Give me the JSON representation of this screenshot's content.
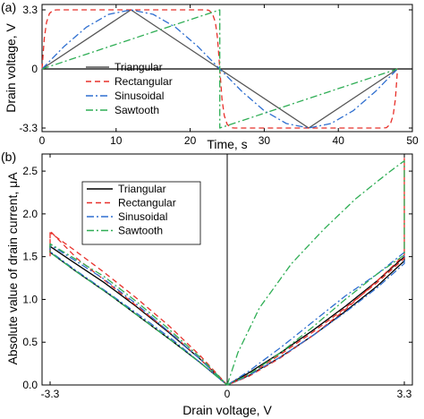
{
  "chart_data": [
    {
      "panel_label": "(a)",
      "type": "line",
      "xlabel": "Time, s",
      "ylabel": "Drain voltage, V",
      "xlim": [
        0,
        50
      ],
      "ylim": [
        -3.5,
        3.6
      ],
      "xticks": [
        0,
        10,
        20,
        30,
        40,
        50
      ],
      "yticks": [
        3.3,
        0,
        -3.3
      ],
      "ytick_labels": [
        "3.3",
        "0",
        "-3.3"
      ],
      "legend_position": "center",
      "grid": false,
      "series": [
        {
          "name": "Triangular",
          "color": "#555555",
          "dash": "solid",
          "x": [
            0,
            12,
            24,
            36,
            48
          ],
          "y": [
            0,
            3.3,
            0,
            -3.3,
            0
          ]
        },
        {
          "name": "Rectangular",
          "color": "#e8302a",
          "dash": "6,4",
          "x": [
            0,
            0.3,
            0.6,
            1.0,
            1.5,
            2.0,
            22.0,
            22.5,
            23.0,
            23.4,
            23.7,
            24.0,
            24.3,
            24.6,
            25.0,
            25.5,
            26.0,
            46.0,
            46.5,
            47.0,
            47.4,
            47.7,
            48.0
          ],
          "y": [
            0,
            1.7,
            2.6,
            3.1,
            3.28,
            3.3,
            3.3,
            3.28,
            3.1,
            2.6,
            1.7,
            0,
            -1.7,
            -2.6,
            -3.1,
            -3.28,
            -3.3,
            -3.3,
            -3.28,
            -3.1,
            -2.6,
            -1.7,
            0
          ]
        },
        {
          "name": "Sinusoidal",
          "color": "#2f6fd0",
          "dash": "8,3,2,3",
          "x": [
            0,
            3,
            6,
            9,
            12,
            15,
            18,
            21,
            24,
            27,
            30,
            33,
            36,
            39,
            42,
            45,
            48
          ],
          "y": [
            0,
            1.263,
            2.333,
            3.049,
            3.3,
            3.049,
            2.333,
            1.263,
            0,
            -1.263,
            -2.333,
            -3.049,
            -3.3,
            -3.049,
            -2.333,
            -1.263,
            0
          ]
        },
        {
          "name": "Sawtooth",
          "color": "#2fae55",
          "dash": "8,3,2,3",
          "x": [
            0,
            24,
            24,
            48
          ],
          "y": [
            0,
            3.3,
            -3.3,
            0
          ]
        }
      ]
    },
    {
      "panel_label": "(b)",
      "type": "line",
      "xlabel": "Drain voltage, V",
      "ylabel": "Absolute value of drain current, μA",
      "xlim": [
        -3.45,
        3.45
      ],
      "ylim": [
        0,
        2.7
      ],
      "xticks": [
        -3.3,
        0,
        3.3
      ],
      "xtick_labels": [
        "-3.3",
        "0",
        "3.3"
      ],
      "yticks": [
        0.0,
        0.5,
        1.0,
        1.5,
        2.0,
        2.5
      ],
      "ytick_labels": [
        "0.0",
        "0.5",
        "1.0",
        "1.5",
        "2.0",
        "2.5"
      ],
      "legend_position": "top-left",
      "grid": false,
      "series": [
        {
          "name": "Triangular",
          "color": "#000000",
          "dash": "solid",
          "x": [
            0,
            0.4,
            1.0,
            1.6,
            2.2,
            2.8,
            3.3,
            3.3,
            2.8,
            2.2,
            1.6,
            1.0,
            0.4,
            0,
            0,
            -0.5,
            -1.1,
            -1.7,
            -2.3,
            -2.9,
            -3.3,
            -3.3,
            -2.8,
            -2.2,
            -1.6,
            -1.0,
            -0.5,
            0
          ],
          "y": [
            0,
            0.14,
            0.38,
            0.64,
            0.92,
            1.22,
            1.5,
            1.45,
            1.16,
            0.86,
            0.58,
            0.33,
            0.11,
            0,
            0,
            0.3,
            0.62,
            0.92,
            1.2,
            1.45,
            1.62,
            1.55,
            1.32,
            1.06,
            0.78,
            0.5,
            0.26,
            0
          ]
        },
        {
          "name": "Rectangular",
          "color": "#e8302a",
          "dash": "6,4",
          "x": [
            0,
            0.4,
            1.0,
            1.6,
            2.2,
            2.8,
            3.3,
            3.3,
            3.3,
            2.8,
            2.2,
            1.6,
            1.0,
            0.4,
            0,
            0,
            -0.5,
            -1.1,
            -1.7,
            -2.3,
            -2.9,
            -3.3,
            -3.3,
            -3.3,
            -2.8,
            -2.2,
            -1.6,
            -1.0,
            -0.5,
            0
          ],
          "y": [
            0,
            0.12,
            0.36,
            0.62,
            0.9,
            1.2,
            1.48,
            2.65,
            1.52,
            1.22,
            0.88,
            0.58,
            0.32,
            0.1,
            0,
            0,
            0.34,
            0.7,
            1.02,
            1.32,
            1.6,
            1.78,
            1.5,
            1.8,
            1.48,
            1.18,
            0.88,
            0.58,
            0.3,
            0
          ]
        },
        {
          "name": "Sinusoidal",
          "color": "#2f6fd0",
          "dash": "8,3,2,3",
          "x": [
            0,
            0.4,
            1.0,
            1.6,
            2.2,
            2.8,
            3.3,
            3.3,
            2.8,
            2.2,
            1.6,
            1.0,
            0.4,
            0,
            0,
            -0.5,
            -1.1,
            -1.7,
            -2.3,
            -2.9,
            -3.3,
            -3.3,
            -2.8,
            -2.2,
            -1.6,
            -1.0,
            -0.5,
            0
          ],
          "y": [
            0,
            0.16,
            0.44,
            0.74,
            1.04,
            1.3,
            1.55,
            1.42,
            1.14,
            0.85,
            0.58,
            0.33,
            0.11,
            0,
            0,
            0.3,
            0.63,
            0.95,
            1.24,
            1.48,
            1.64,
            1.56,
            1.33,
            1.07,
            0.8,
            0.52,
            0.26,
            0
          ]
        },
        {
          "name": "Sawtooth",
          "color": "#2fae55",
          "dash": "8,3,2,3",
          "x": [
            0,
            0.2,
            0.6,
            1.2,
            1.8,
            2.4,
            3.0,
            3.3,
            3.3,
            2.8,
            2.2,
            1.6,
            1.0,
            0.4,
            0,
            0,
            -0.5,
            -1.1,
            -1.7,
            -2.3,
            -2.9,
            -3.3,
            -3.3,
            -2.8,
            -2.2,
            -1.6,
            -1.0,
            -0.5,
            0
          ],
          "y": [
            0,
            0.38,
            0.9,
            1.42,
            1.82,
            2.18,
            2.48,
            2.62,
            1.52,
            1.3,
            1.0,
            0.68,
            0.38,
            0.12,
            0,
            0,
            0.32,
            0.66,
            0.98,
            1.27,
            1.5,
            1.65,
            1.55,
            1.32,
            1.06,
            0.78,
            0.5,
            0.26,
            0
          ]
        }
      ]
    }
  ]
}
